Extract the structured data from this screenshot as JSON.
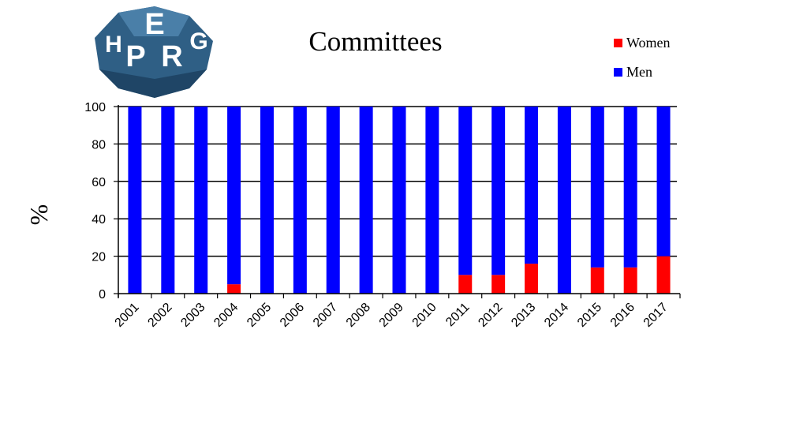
{
  "logo": {
    "letters": [
      "E",
      "H",
      "P",
      "R",
      "G"
    ]
  },
  "chart_data": {
    "type": "bar",
    "title": "Committees",
    "xlabel": "",
    "ylabel": "%",
    "ylim": [
      0,
      100
    ],
    "yticks": [
      0,
      20,
      40,
      60,
      80,
      100
    ],
    "grid": true,
    "legend_position": "top-right",
    "categories": [
      "2001",
      "2002",
      "2003",
      "2004",
      "2005",
      "2006",
      "2007",
      "2008",
      "2009",
      "2010",
      "2011",
      "2012",
      "2013",
      "2014",
      "2015",
      "2016",
      "2017"
    ],
    "series": [
      {
        "name": "Women",
        "color": "#ff0000",
        "values": [
          0,
          0,
          0,
          5,
          0,
          0,
          0,
          0,
          0,
          0,
          10,
          10,
          16,
          0,
          14,
          14,
          20
        ]
      },
      {
        "name": "Men",
        "color": "#0000ff",
        "values": [
          100,
          100,
          100,
          95,
          100,
          100,
          100,
          100,
          100,
          100,
          90,
          90,
          84,
          100,
          86,
          86,
          80
        ]
      }
    ]
  }
}
